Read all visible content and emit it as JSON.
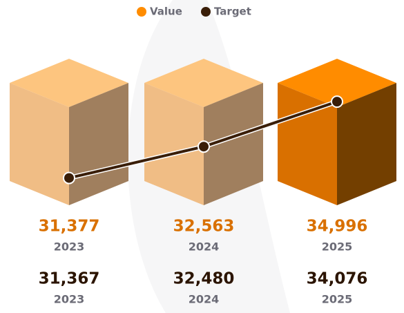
{
  "chart_data": {
    "type": "cube-bar-line",
    "categories": [
      "2023",
      "2024",
      "2025"
    ],
    "ylim": [
      30400,
      35600
    ],
    "series": [
      {
        "name": "Value",
        "color": "#ff8c00",
        "values": [
          31377,
          32563,
          34996
        ],
        "value_labels": [
          "31,377",
          "32,563",
          "34,996"
        ]
      },
      {
        "name": "Target",
        "color": "#3a1e08",
        "values": [
          31367,
          32480,
          34076
        ],
        "value_labels": [
          "31,367",
          "32,480",
          "34,076"
        ]
      }
    ]
  }
}
